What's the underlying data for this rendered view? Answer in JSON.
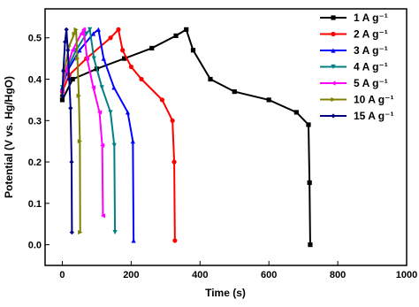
{
  "chart_data": {
    "type": "line",
    "x_label": "Time (s)",
    "y_label": "Potential (V vs. Hg/HgO)",
    "xlim": [
      -50,
      1000
    ],
    "xticks": [
      0,
      200,
      400,
      600,
      800,
      1000
    ],
    "ylim": [
      -0.05,
      0.57
    ],
    "yticks": [
      {
        "value": 0,
        "label": "0.0"
      },
      0.1,
      0.2,
      0.3,
      0.4,
      0.5
    ],
    "legend": "upper right",
    "series": [
      {
        "name": "1 A g⁻¹",
        "color": "#000000",
        "marker": "square",
        "x": [
          0,
          30,
          100,
          180,
          260,
          330,
          360,
          380,
          430,
          500,
          600,
          680,
          715,
          718,
          720
        ],
        "values": [
          0.35,
          0.4,
          0.425,
          0.45,
          0.475,
          0.505,
          0.52,
          0.47,
          0.4,
          0.37,
          0.35,
          0.32,
          0.29,
          0.15,
          0.0
        ]
      },
      {
        "name": "2 A g⁻¹",
        "color": "#ff0000",
        "marker": "circle",
        "x": [
          0,
          20,
          70,
          140,
          163,
          175,
          200,
          230,
          290,
          320,
          325,
          327
        ],
        "values": [
          0.37,
          0.41,
          0.45,
          0.5,
          0.52,
          0.47,
          0.43,
          0.4,
          0.35,
          0.3,
          0.2,
          0.01
        ]
      },
      {
        "name": "3 A g⁻¹",
        "color": "#0000ff",
        "marker": "tri-up",
        "x": [
          0,
          15,
          50,
          90,
          105,
          120,
          150,
          190,
          205,
          207
        ],
        "values": [
          0.38,
          0.42,
          0.47,
          0.51,
          0.52,
          0.45,
          0.38,
          0.32,
          0.25,
          0.01
        ]
      },
      {
        "name": "4 A g⁻¹",
        "color": "#008080",
        "marker": "tri-down",
        "x": [
          0,
          12,
          40,
          70,
          80,
          92,
          115,
          140,
          151,
          153
        ],
        "values": [
          0.38,
          0.42,
          0.47,
          0.51,
          0.52,
          0.45,
          0.38,
          0.32,
          0.24,
          0.03
        ]
      },
      {
        "name": "5 A g⁻¹",
        "color": "#ff00ff",
        "marker": "tri-left",
        "x": [
          0,
          10,
          30,
          55,
          62,
          72,
          90,
          108,
          116,
          118
        ],
        "values": [
          0.37,
          0.42,
          0.47,
          0.51,
          0.52,
          0.45,
          0.38,
          0.32,
          0.24,
          0.07
        ]
      },
      {
        "name": "10 A g⁻¹",
        "color": "#808000",
        "marker": "tri-right",
        "x": [
          0,
          6,
          20,
          35,
          40,
          44,
          48,
          51,
          52
        ],
        "values": [
          0.36,
          0.42,
          0.48,
          0.51,
          0.52,
          0.45,
          0.36,
          0.25,
          0.03
        ]
      },
      {
        "name": "15 A g⁻¹",
        "color": "#000080",
        "marker": "diamond",
        "x": [
          0,
          3,
          8,
          12,
          16,
          20,
          24,
          27,
          28
        ],
        "values": [
          0.36,
          0.42,
          0.49,
          0.52,
          0.47,
          0.4,
          0.33,
          0.2,
          0.03
        ]
      }
    ]
  }
}
